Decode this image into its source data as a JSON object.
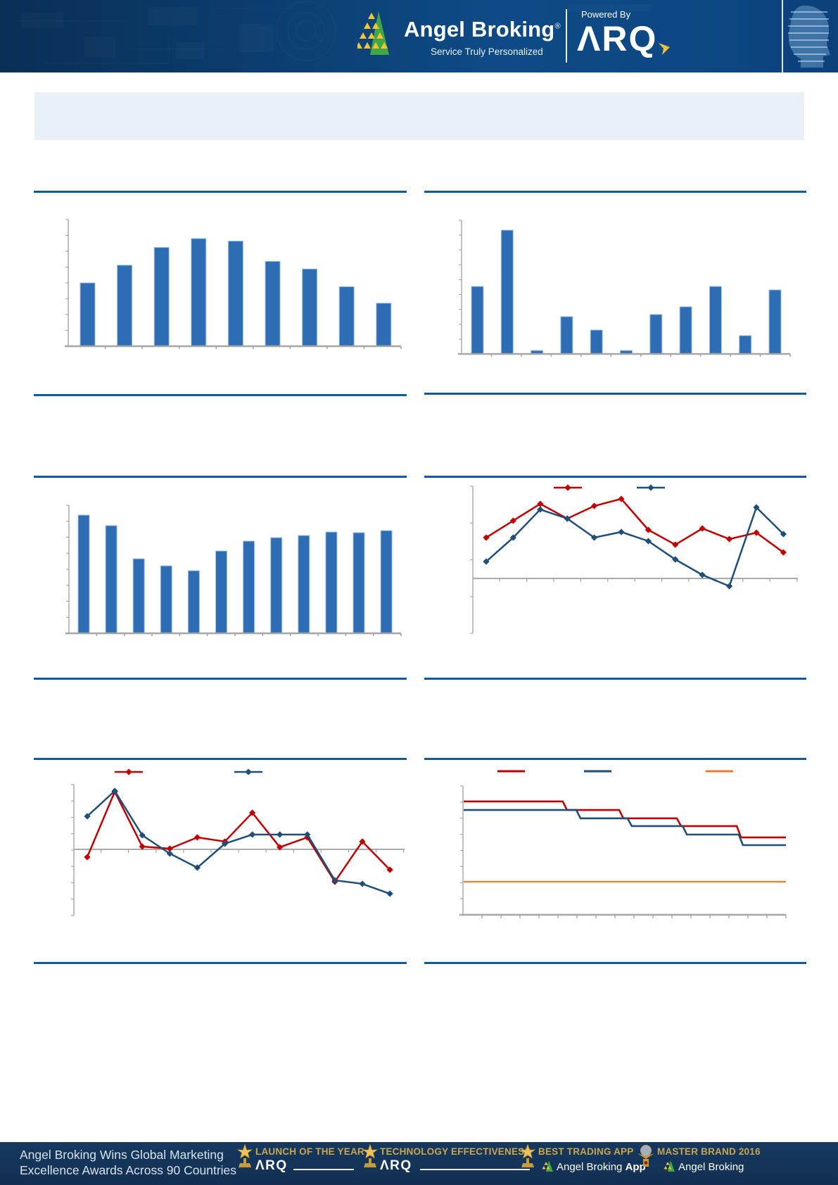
{
  "header": {
    "brand": "Angel Broking",
    "reg": "®",
    "tagline": "Service Truly Personalized",
    "powered_by": "Powered By",
    "product_name": "ΛRQ"
  },
  "banner": {
    "text": ""
  },
  "colors": {
    "accent_rule": "#0E5AA9",
    "banner_bg": "#E9F0F8",
    "bar_fill": "#2E6DB4",
    "bar_edge": "#9DC3E6",
    "series_red": "#C00000",
    "series_blue": "#1F4E79",
    "series_orange": "#ED7D31",
    "axis_gray": "#A6A6A6",
    "header_bg": "#0D4884",
    "footer_bg": "#143760",
    "award_gold": "#C9A54E"
  },
  "chart_data": [
    {
      "id": "top_left_bar",
      "type": "bar",
      "values": [
        50,
        64,
        78,
        85,
        83,
        67,
        61,
        47,
        34
      ],
      "x_labels": [],
      "axis_labels_visible": false,
      "grid": false,
      "ylim": [
        0,
        100
      ],
      "bar_color": "#2E6DB4"
    },
    {
      "id": "top_right_bar",
      "type": "bar",
      "values": [
        50.5,
        92.6,
        2.6,
        27.9,
        17.9,
        2.6,
        29.5,
        35.3,
        50.5,
        13.7,
        47.9
      ],
      "x_labels": [],
      "axis_labels_visible": false,
      "grid": false,
      "ylim": [
        0,
        100
      ],
      "bar_color": "#2E6DB4"
    },
    {
      "id": "middle_left_bar",
      "type": "bar",
      "values": [
        92.3,
        84.1,
        58.2,
        52.7,
        48.9,
        64.3,
        72.0,
        74.7,
        76.4,
        79.1,
        78.6,
        80.2
      ],
      "x_labels": [],
      "axis_labels_visible": false,
      "grid": false,
      "ylim": [
        0,
        100
      ],
      "bar_color": "#2E6DB4"
    },
    {
      "id": "middle_right_lines",
      "type": "line",
      "x": [
        1,
        2,
        3,
        4,
        5,
        6,
        7,
        8,
        9,
        10,
        11,
        12
      ],
      "series": [
        {
          "name": "series-red",
          "color": "#C00000",
          "values": [
            44.3,
            62.6,
            80.9,
            64.9,
            78.6,
            86.3,
            52.7,
            36.6,
            54.2,
            42.7,
            49.6,
            28.2
          ]
        },
        {
          "name": "series-blue",
          "color": "#1F4E79",
          "values": [
            18.3,
            44.3,
            74.8,
            64.9,
            44.3,
            50.4,
            40.5,
            20.6,
            3.8,
            -8.4,
            77.1,
            48.1
          ]
        }
      ],
      "marker": "diamond",
      "legend_position": "top",
      "legend_labels_visible": false,
      "axis_labels_visible": false,
      "grid": false,
      "ylim": [
        -60,
        100
      ]
    },
    {
      "id": "bottom_left_lines",
      "type": "line",
      "x": [
        1,
        2,
        3,
        4,
        5,
        6,
        7,
        8,
        9,
        10,
        11,
        12
      ],
      "series": [
        {
          "name": "series-red",
          "color": "#C00000",
          "values": [
            -12.0,
            89.1,
            4.3,
            1.1,
            18.5,
            12.0,
            56.5,
            3.3,
            18.5,
            -50.0,
            12.0,
            -31.5
          ]
        },
        {
          "name": "series-blue",
          "color": "#1F4E79",
          "values": [
            51.1,
            90.2,
            21.7,
            -6.5,
            -28.3,
            8.7,
            22.8,
            22.8,
            22.8,
            -47.8,
            -53.3,
            -68.5
          ]
        }
      ],
      "marker": "diamond",
      "legend_position": "top",
      "legend_labels_visible": false,
      "axis_labels_visible": false,
      "grid": false,
      "ylim": [
        -102,
        100
      ]
    },
    {
      "id": "bottom_right_steps",
      "type": "line",
      "subtype": "step",
      "series": [
        {
          "name": "step-red",
          "color": "#C00000",
          "levels": [
            88.0,
            81.4,
            74.9,
            68.9,
            60.1
          ],
          "break_x_pct": [
            31.4,
            48.9,
            66.8,
            85.4
          ]
        },
        {
          "name": "step-blue",
          "color": "#1F4E79",
          "levels": [
            81.4,
            74.9,
            68.9,
            62.3,
            54.1
          ],
          "break_x_pct": [
            35.6,
            51.5,
            68.6,
            86.0
          ]
        },
        {
          "name": "flat-orange",
          "color": "#ED7D31",
          "levels": [
            25.7
          ],
          "break_x_pct": []
        }
      ],
      "legend_position": "top",
      "legend_labels_visible": false,
      "axis_labels_visible": false,
      "grid": false,
      "ylim": [
        0,
        100
      ]
    }
  ],
  "footer": {
    "headline_line1": "Angel Broking Wins Global Marketing",
    "headline_line2": "Excellence Awards Across 90 Countries",
    "awards": [
      {
        "label": "LAUNCH OF THE YEAR",
        "sub_brand": "ΛRQ"
      },
      {
        "label": "TECHNOLOGY EFFECTIVENESS",
        "sub_brand": "ΛRQ"
      },
      {
        "label": "BEST TRADING APP",
        "sub_brand": "Angel Broking ",
        "sub_brand_bold": "App"
      },
      {
        "label": "MASTER BRAND 2016",
        "sub_brand": "Angel Broking",
        "sub_brand_bold": ""
      }
    ]
  }
}
